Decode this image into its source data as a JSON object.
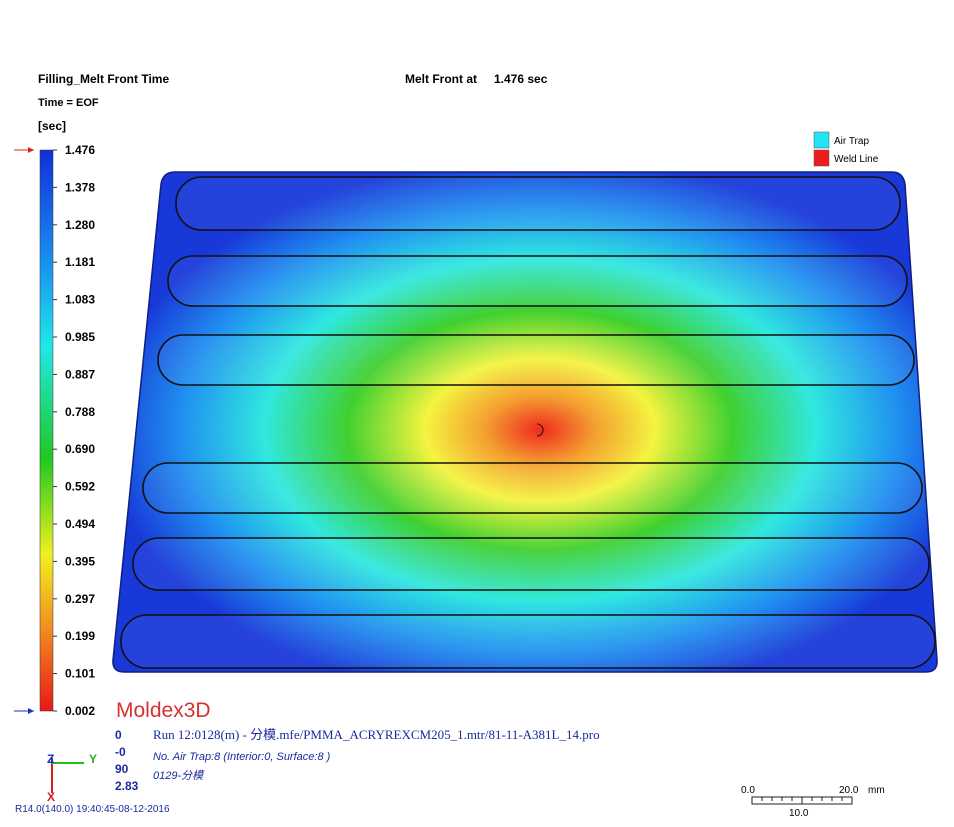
{
  "header": {
    "title": "Filling_Melt Front Time",
    "time": "Time = EOF",
    "unit": "[sec]",
    "melt_front_label": "Melt Front at",
    "melt_front_value": "1.476 sec"
  },
  "color_scale": {
    "labels": [
      "1.476",
      "1.378",
      "1.280",
      "1.181",
      "1.083",
      "0.985",
      "0.887",
      "0.788",
      "0.690",
      "0.592",
      "0.494",
      "0.395",
      "0.297",
      "0.199",
      "0.101",
      "0.002"
    ]
  },
  "legend": {
    "items": [
      {
        "label": "Air Trap",
        "color": "#22e4f4"
      },
      {
        "label": "Weld Line",
        "color": "#ee1c1c"
      }
    ]
  },
  "logo": "Moldex3D",
  "view": {
    "values": [
      "0",
      "-0",
      "90",
      "2.83"
    ],
    "axes": [
      "Z",
      "Y",
      "X"
    ]
  },
  "info": {
    "run": "Run 12:0128(m) - 分模.mfe/PMMA_ACRYREXCM205_1.mtr/81-11-A381L_14.pro",
    "air_trap": "No. Air Trap:8 (Interior:0, Surface:8 )",
    "note": "0129-分模"
  },
  "version": "R14.0(140.0) 19:40:45-08-12-2016",
  "scale_bar": {
    "start": "0.0",
    "end": "20.0",
    "unit": "mm",
    "mid": "10.0"
  }
}
